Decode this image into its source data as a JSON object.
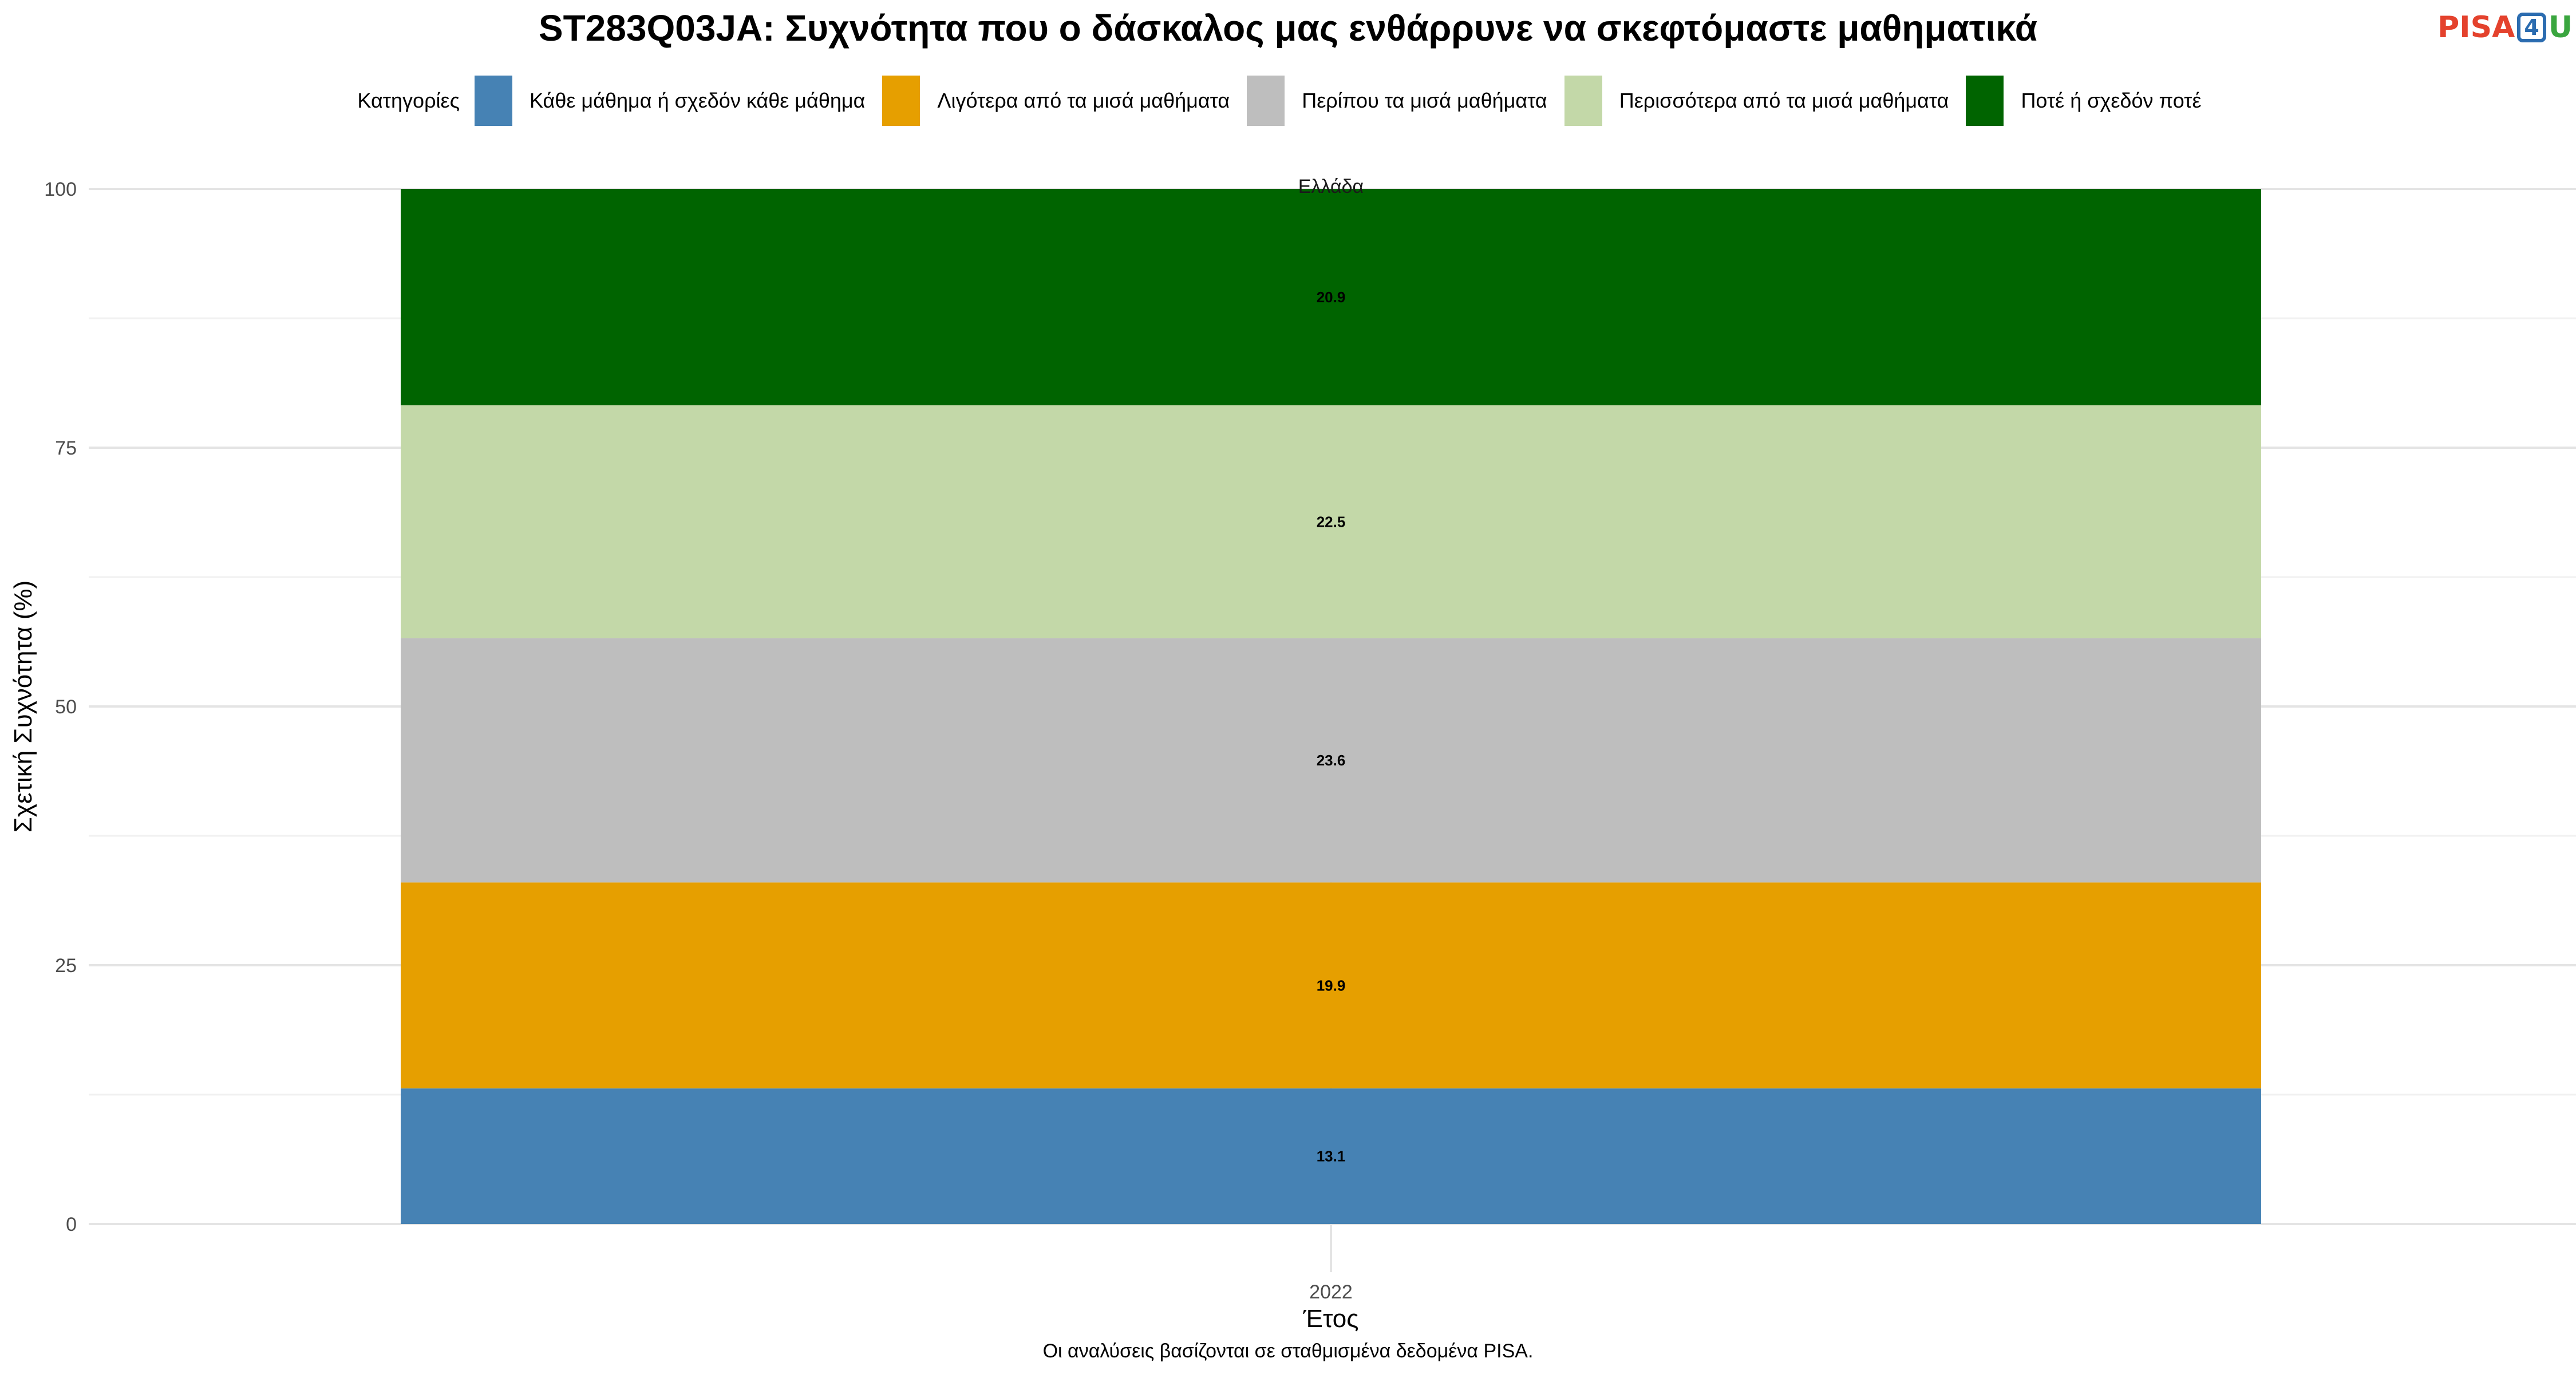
{
  "chart_data": {
    "type": "bar",
    "stacked": true,
    "title": "ST283Q03JA: Συχνότητα που ο δάσκαλος μας ενθάρρυνε να σκεφτόμαστε μαθηματικά",
    "facet": "Ελλάδα",
    "categories": [
      "2022"
    ],
    "xlabel": "Έτος",
    "ylabel": "Σχετική Συχνότητα (%)",
    "ylim": [
      0,
      100
    ],
    "yticks": [
      0,
      25,
      50,
      75,
      100
    ],
    "grid": true,
    "legend_position": "top",
    "legend_title": "Κατηγορίες",
    "series": [
      {
        "name": "Κάθε μάθημα ή σχεδόν κάθε μάθημα",
        "values": [
          13.1
        ],
        "color": "#4682b4"
      },
      {
        "name": "Λιγότερα από τα μισά μαθήματα",
        "values": [
          19.9
        ],
        "color": "#e69f00"
      },
      {
        "name": "Περίπου τα μισά μαθήματα",
        "values": [
          23.6
        ],
        "color": "#bebebe"
      },
      {
        "name": "Περισσότερα από τα μισά μαθήματα",
        "values": [
          22.5
        ],
        "color": "#c3d8a8"
      },
      {
        "name": "Ποτέ ή σχεδόν ποτέ",
        "values": [
          20.9
        ],
        "color": "#006400"
      }
    ]
  },
  "footnote": "Οι αναλύσεις βασίζονται σε σταθμισμένα δεδομένα PISA.",
  "logo": {
    "part1": "PISA",
    "part2": "4",
    "part3": "U"
  }
}
